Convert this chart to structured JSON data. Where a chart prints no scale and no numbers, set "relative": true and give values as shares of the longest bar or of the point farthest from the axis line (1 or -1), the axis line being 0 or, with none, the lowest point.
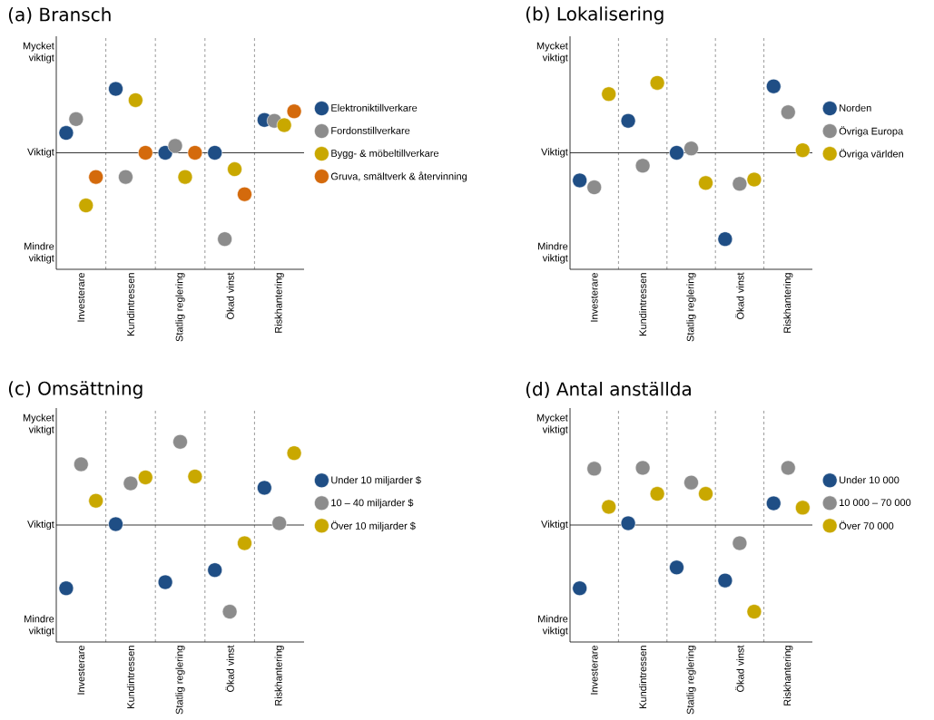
{
  "chart_data": [
    {
      "type": "scatter",
      "title": "(a) Bransch",
      "categories": [
        "Investerare",
        "Kundintressen",
        "Statlig reglering",
        "Ökad vinst",
        "Riskhantering"
      ],
      "relative": true,
      "annotations": [
        "Mindre viktigt",
        "Mycket viktigt"
      ],
      "grid": "x",
      "legend": "right",
      "marker": "circle",
      "ref_lines": [
        {
          "axis": "y",
          "value": 0,
          "label": "Viktigt"
        }
      ],
      "series": [
        {
          "name": "Elektroniktillverkare",
          "color": "#1f4e85",
          "values": [
            0.23,
            0.74,
            0,
            0,
            0.38
          ]
        },
        {
          "name": "Fordonstillverkare",
          "color": "#8c8c8c",
          "values": [
            0.39,
            -0.28,
            0.08,
            -1,
            0.37
          ]
        },
        {
          "name": "Bygg- & möbeltillverkare",
          "color": "#c9a800",
          "values": [
            -0.61,
            0.61,
            -0.28,
            -0.19,
            0.32
          ]
        },
        {
          "name": "Gruva, smältverk & återvinning",
          "color": "#d46a0c",
          "values": [
            -0.28,
            0,
            0,
            -0.48,
            0.48
          ]
        }
      ]
    },
    {
      "type": "scatter",
      "title": "(b) Lokalisering",
      "categories": [
        "Investerare",
        "Kundintressen",
        "Statlig reglering",
        "Ökad vinst",
        "Riskhantering"
      ],
      "relative": true,
      "annotations": [
        "Mindre viktigt",
        "Mycket viktigt"
      ],
      "grid": "x",
      "legend": "right",
      "marker": "circle",
      "ref_lines": [
        {
          "axis": "y",
          "value": 0,
          "label": "Viktigt"
        }
      ],
      "series": [
        {
          "name": "Norden",
          "color": "#1f4e85",
          "values": [
            -0.32,
            0.37,
            0,
            -1,
            0.77
          ]
        },
        {
          "name": "Övriga Europa",
          "color": "#8c8c8c",
          "values": [
            -0.4,
            -0.15,
            0.05,
            -0.36,
            0.47
          ]
        },
        {
          "name": "Övriga världen",
          "color": "#c9a800",
          "values": [
            0.68,
            0.81,
            -0.35,
            -0.31,
            0.03
          ]
        }
      ]
    },
    {
      "type": "scatter",
      "title": "(c) Omsättning",
      "categories": [
        "Investerare",
        "Kundintressen",
        "Statlig reglering",
        "Ökad vinst",
        "Riskhantering"
      ],
      "relative": true,
      "annotations": [
        "Mindre viktigt",
        "Mycket viktigt"
      ],
      "grid": "x",
      "legend": "right",
      "marker": "circle",
      "ref_lines": [
        {
          "axis": "y",
          "value": 0,
          "label": "Viktigt"
        }
      ],
      "series": [
        {
          "name": "Under 10 miljarder $",
          "color": "#1f4e85",
          "values": [
            -0.73,
            0.01,
            -0.66,
            -0.52,
            0.43
          ]
        },
        {
          "name": "10 – 40 miljarder $",
          "color": "#8c8c8c",
          "values": [
            0.7,
            0.48,
            0.96,
            -1,
            0.02
          ]
        },
        {
          "name": "Över 10 miljarder $",
          "color": "#c9a800",
          "values": [
            0.28,
            0.55,
            0.56,
            -0.21,
            0.83
          ]
        }
      ]
    },
    {
      "type": "scatter",
      "title": "(d) Antal anställda",
      "categories": [
        "Investerare",
        "Kundintressen",
        "Statlig reglering",
        "Ökad vinst",
        "Riskhantering"
      ],
      "relative": true,
      "annotations": [
        "Mindre viktigt",
        "Mycket viktigt"
      ],
      "grid": "x",
      "legend": "right",
      "marker": "circle",
      "ref_lines": [
        {
          "axis": "y",
          "value": 0,
          "label": "Viktigt"
        }
      ],
      "series": [
        {
          "name": "Under 10 000",
          "color": "#1f4e85",
          "values": [
            -0.73,
            0.02,
            -0.49,
            -0.64,
            0.25
          ]
        },
        {
          "name": "10 000 – 70 000",
          "color": "#8c8c8c",
          "values": [
            0.65,
            0.66,
            0.49,
            -0.21,
            0.66
          ]
        },
        {
          "name": "Över 70 000",
          "color": "#c9a800",
          "values": [
            0.21,
            0.36,
            0.36,
            -1,
            0.2
          ]
        }
      ]
    }
  ]
}
